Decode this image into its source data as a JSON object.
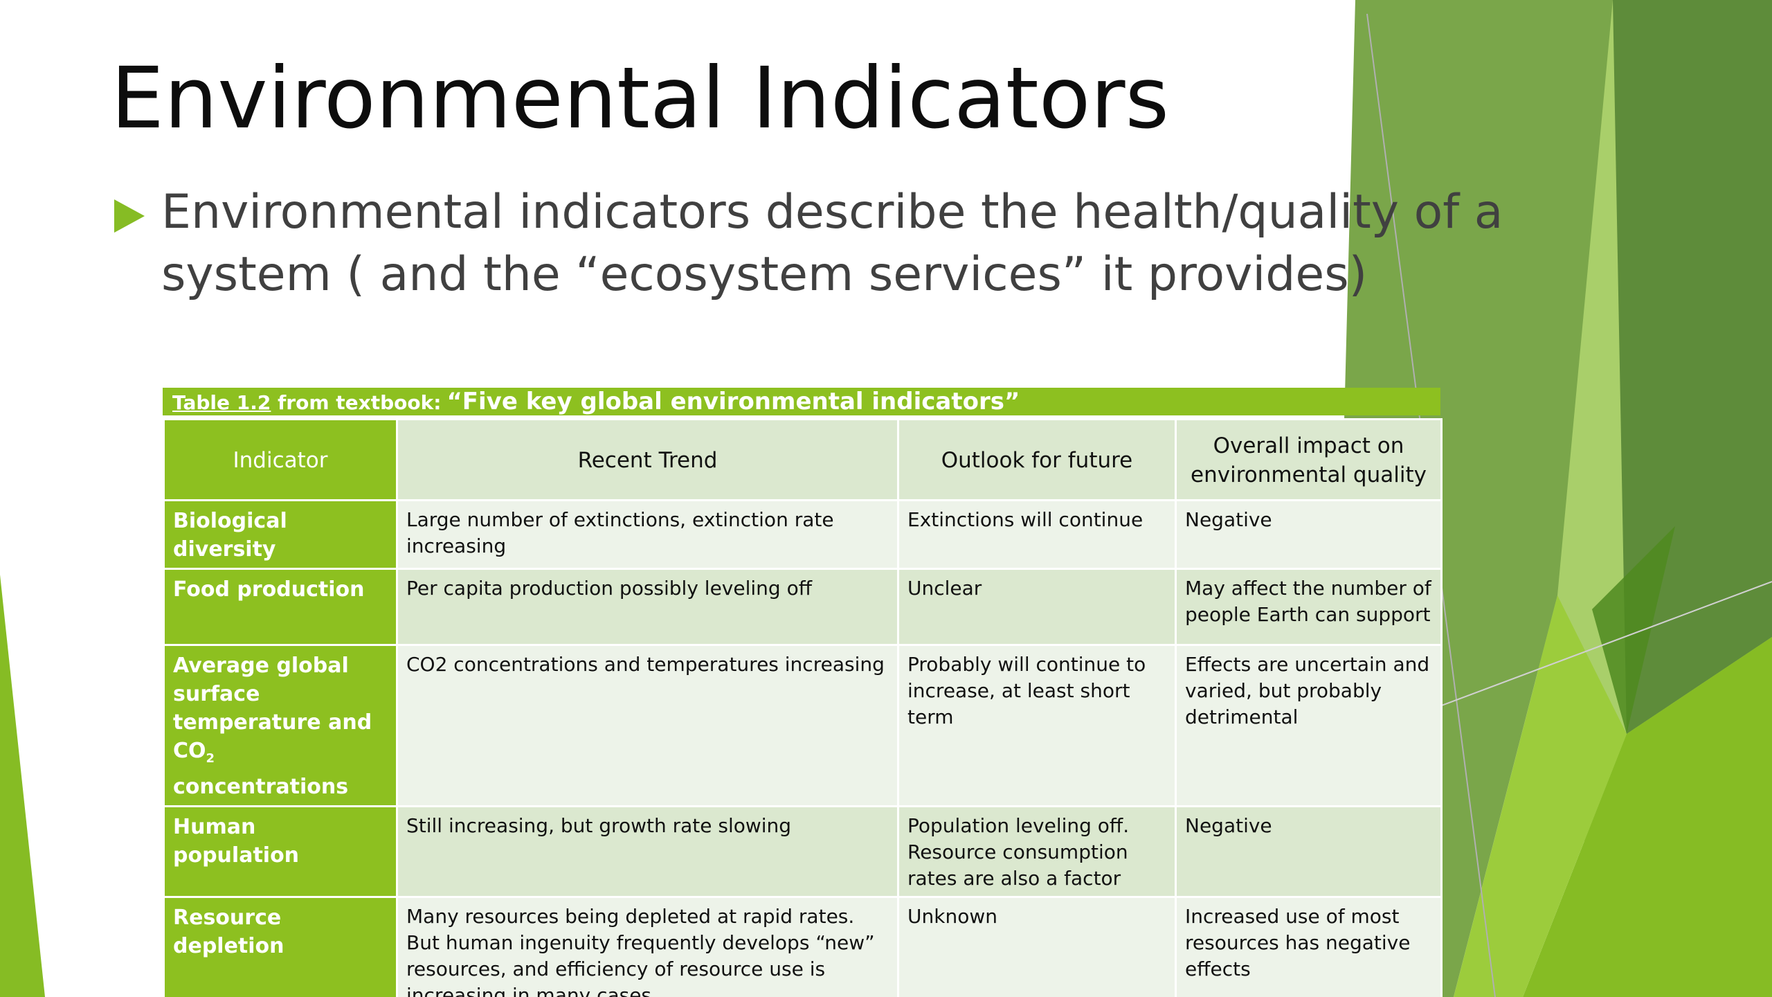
{
  "slide": {
    "title": "Environmental Indicators",
    "bullet": "Environmental indicators describe the health/quality of a system ( and the “ecosystem services” it provides)"
  },
  "table": {
    "caption_ref": "Table 1.2",
    "caption_text": " from textbook:",
    "caption_quote": "“Five key global environmental indicators”",
    "headers": [
      "Indicator",
      "Recent Trend",
      "Outlook for future",
      "Overall impact on environmental quality"
    ],
    "rows": [
      {
        "indicator": "Biological diversity",
        "trend": "Large number of extinctions, extinction rate increasing",
        "outlook": "Extinctions will continue",
        "impact": "Negative"
      },
      {
        "indicator": "Food production",
        "trend": "Per capita production possibly leveling off",
        "outlook": "Unclear",
        "impact": "May affect the number of people Earth can support"
      },
      {
        "indicator_pre": "Average global surface temperature and CO",
        "indicator_sub": "2",
        "indicator_post": " concentrations",
        "trend": "CO2 concentrations and temperatures increasing",
        "outlook": "Probably will continue to increase, at least short term",
        "impact": "Effects are uncertain and varied, but probably detrimental"
      },
      {
        "indicator": "Human population",
        "trend": "Still increasing, but growth rate slowing",
        "outlook": "Population leveling off. Resource consumption rates are also a factor",
        "impact": "Negative"
      },
      {
        "indicator": "Resource depletion",
        "trend": "Many resources being depleted at rapid rates.  But human ingenuity frequently develops “new” resources, and efficiency of resource use is increasing in many cases",
        "outlook": "Unknown",
        "impact": "Increased use of most resources has negative effects"
      }
    ]
  },
  "theme": {
    "accent_green": "#86bc24",
    "table_header_green": "#8dc020",
    "row_light": "#edf3e9",
    "row_dark": "#dbe8cf"
  }
}
